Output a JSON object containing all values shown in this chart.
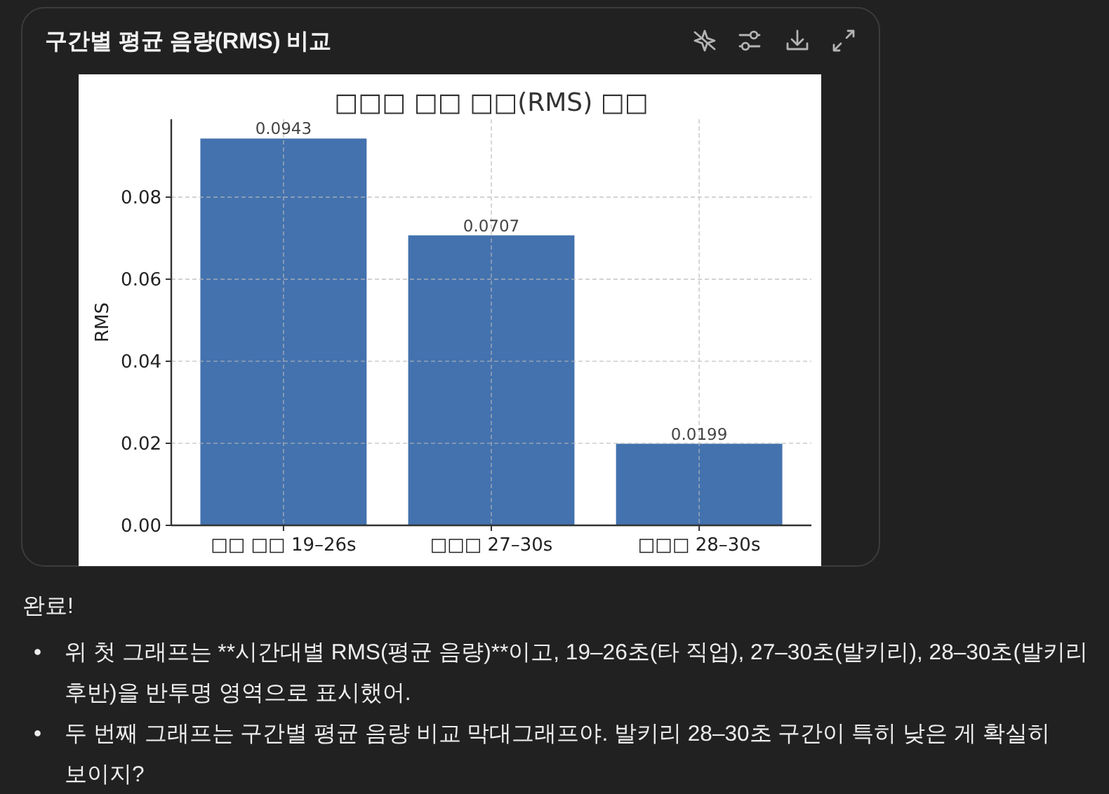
{
  "chart_data": {
    "type": "bar",
    "title": "구간별 평균 음량(RMS) 비교",
    "subtitle": "□□□ □□ □□(RMS) □□",
    "ylabel": "RMS",
    "categories": [
      "□□ □□ 19–26s",
      "□□□ 27–30s",
      "□□□ 28–30s"
    ],
    "values": [
      0.0943,
      0.0707,
      0.0199
    ],
    "color": "#4372ae",
    "ylim": [
      0,
      0.099
    ],
    "yticks": [
      {
        "value": 0,
        "label": "0.00"
      },
      0.02,
      0.04,
      0.06,
      0.08
    ],
    "grid": true,
    "data_labels": true,
    "annotations": [
      "완료!",
      "• 위 첫 그래프는 **시간대별 RMS(평균 음량)**이고, 19–26초(타 직업), 27–30초(발키리), 28–30초(발키리 후반)을 반투명 영역으로 표시했어.",
      "• 두 번째 그래프는 구간별 평균 음량 비교 막대그래프야. 발키리 28–30초 구간이 특히 낮은 게 확실히 보이지?"
    ]
  }
}
